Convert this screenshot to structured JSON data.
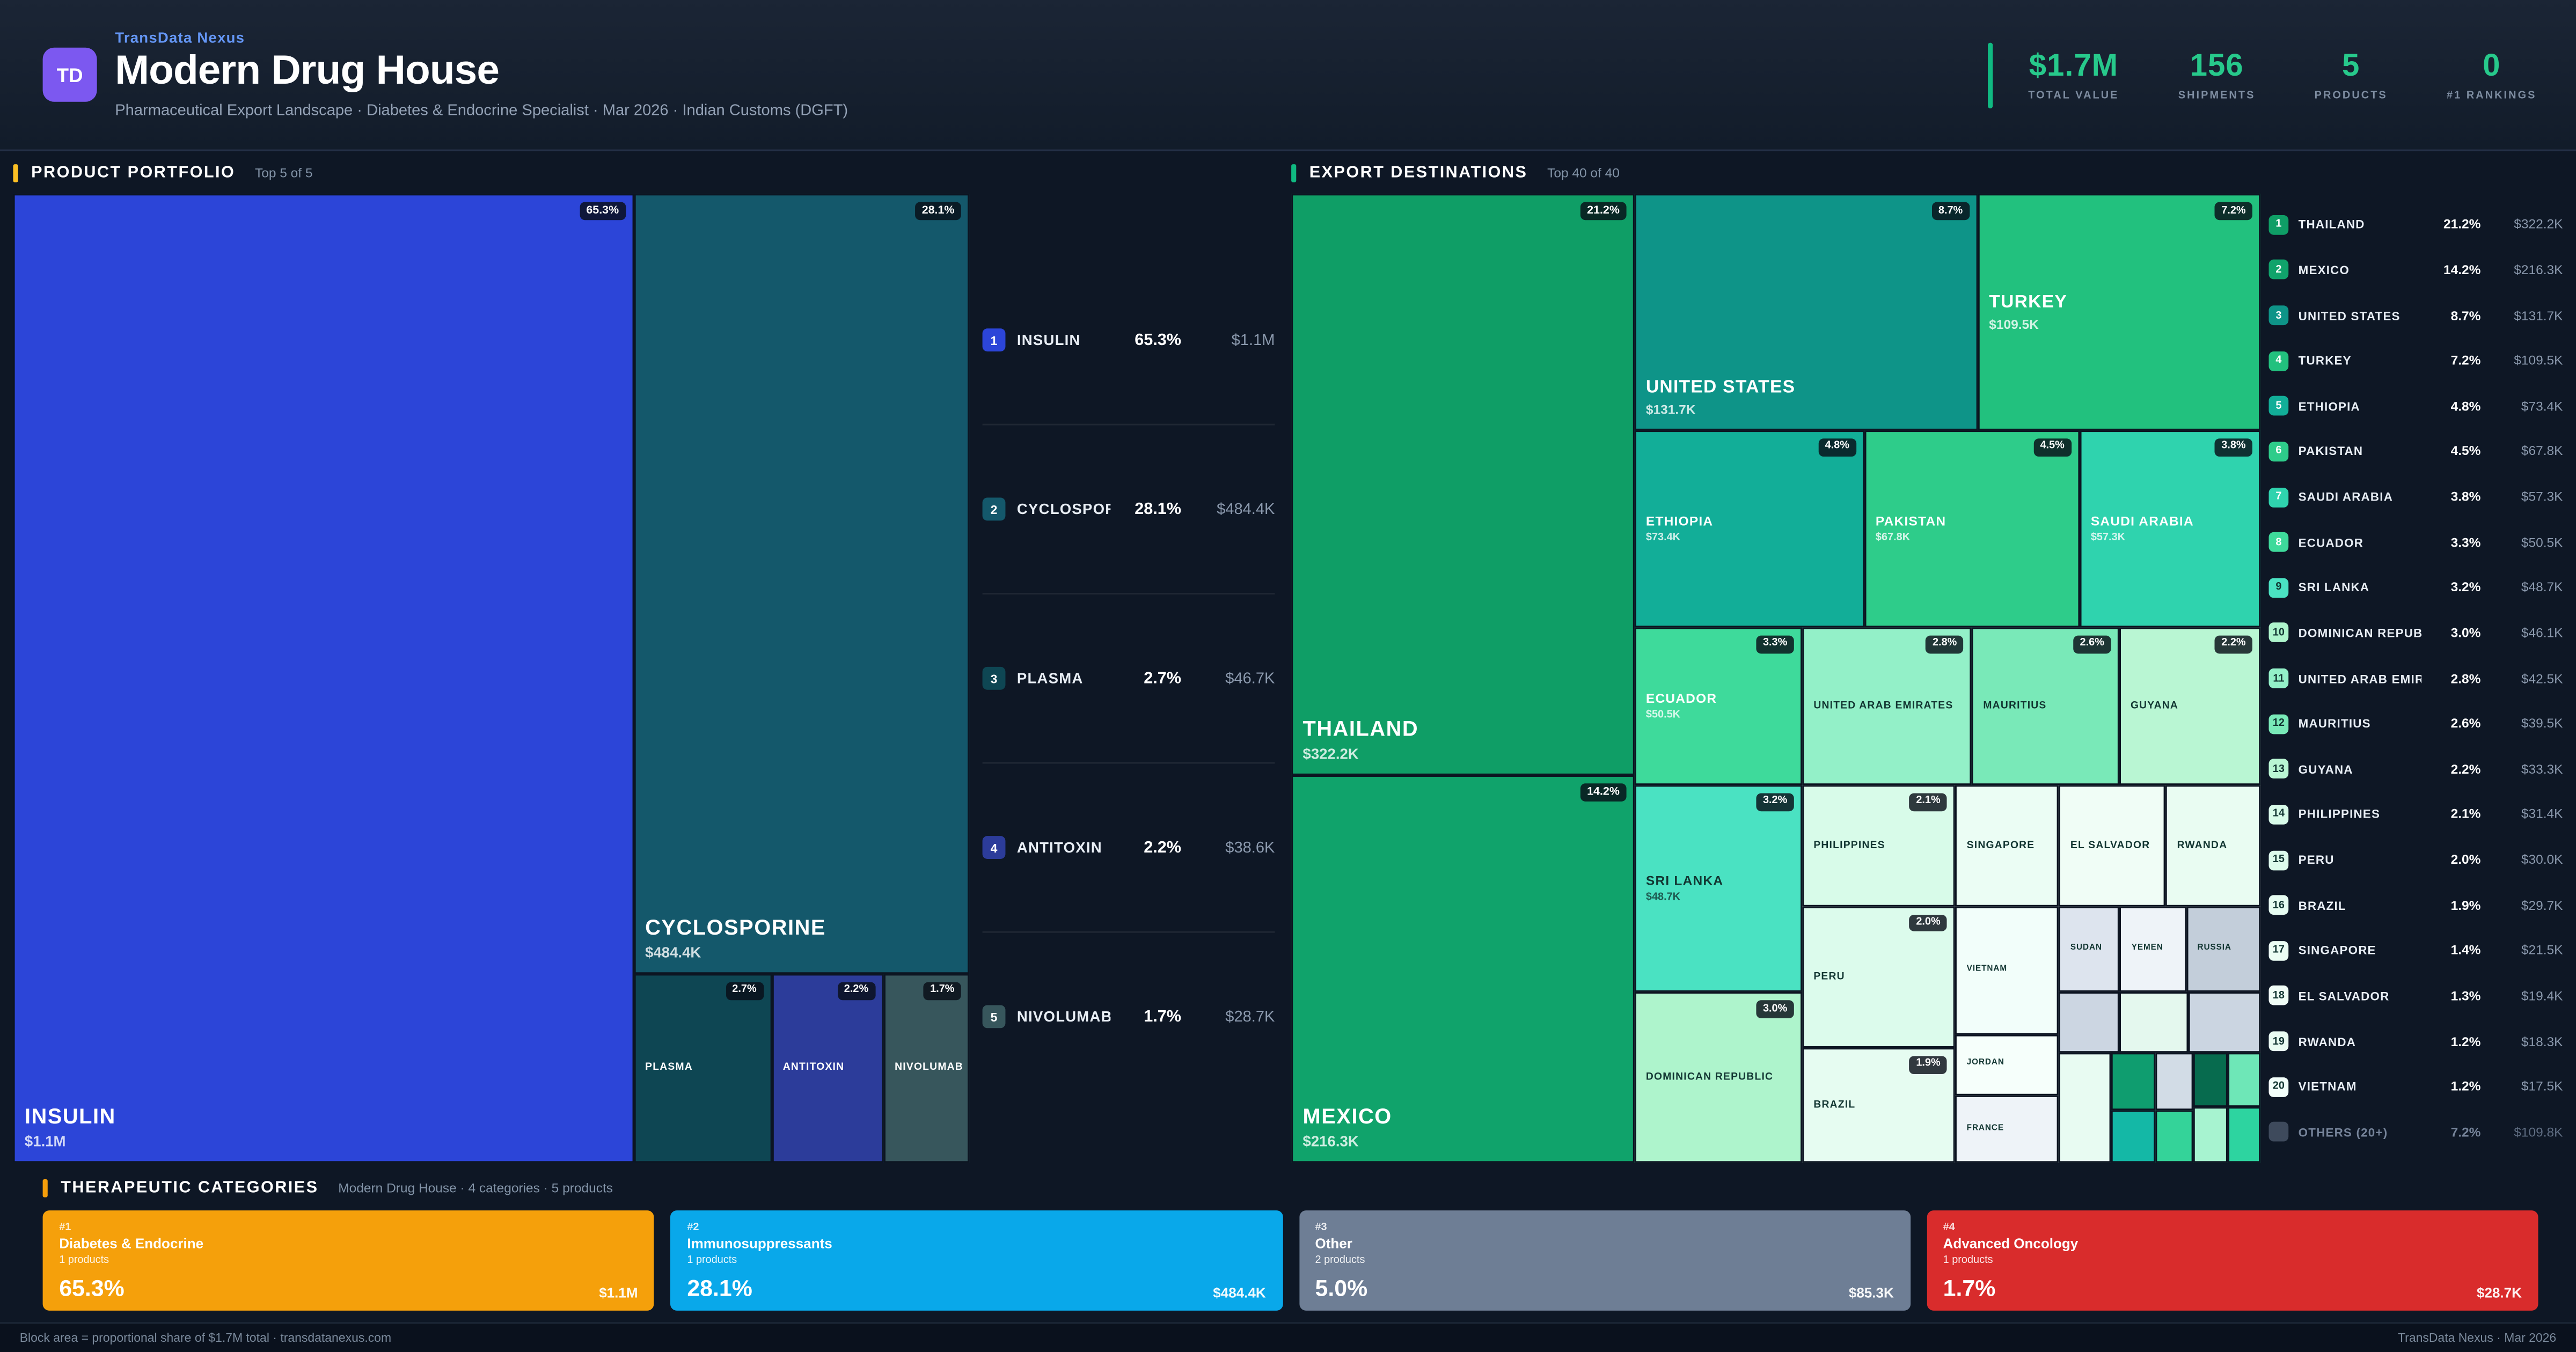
{
  "colors": {
    "accent_green": "#10b981",
    "stat_green": "#27c98b",
    "brand_blue": "#6496f5",
    "logo_purple": "#7c58f0",
    "portfolio_accent": "#fbbf24",
    "destinations_accent": "#10b981",
    "categories_accent": "#f59e0b"
  },
  "header": {
    "brand": "TransData Nexus",
    "logo": "TD",
    "title": "Modern Drug House",
    "subtitle": "Pharmaceutical Export Landscape · Diabetes & Endocrine Specialist · Mar 2026 · Indian Customs (DGFT)",
    "stats": [
      {
        "value": "$1.7M",
        "label": "TOTAL VALUE"
      },
      {
        "value": "156",
        "label": "SHIPMENTS"
      },
      {
        "value": "5",
        "label": "PRODUCTS"
      },
      {
        "value": "0",
        "label": "#1 RANKINGS"
      }
    ]
  },
  "portfolio": {
    "title": "PRODUCT PORTFOLIO",
    "range": "Top 5 of 5",
    "blocks": [
      {
        "name": "INSULIN",
        "value": "$1.1M",
        "badge": "65.3%",
        "x": "0%",
        "y": "0%",
        "w": "64.9%",
        "h": "100%",
        "color": "#2c45d8",
        "sz": "xl",
        "lp": "b"
      },
      {
        "name": "CYCLOSPORINE",
        "value": "$484.4K",
        "badge": "28.1%",
        "x": "64.9%",
        "y": "0%",
        "w": "35.1%",
        "h": "80.5%",
        "color": "#14586b",
        "sz": "xl",
        "lp": "b"
      },
      {
        "name": "PLASMA",
        "value": "",
        "badge": "2.7%",
        "x": "64.9%",
        "y": "80.5%",
        "w": "14.4%",
        "h": "19.5%",
        "color": "#0e4653",
        "sz": "sm"
      },
      {
        "name": "ANTITOXIN",
        "value": "",
        "badge": "2.2%",
        "x": "79.3%",
        "y": "80.5%",
        "w": "11.7%",
        "h": "19.5%",
        "color": "#2c3c9a",
        "sz": "sm"
      },
      {
        "name": "NIVOLUMAB",
        "value": "",
        "badge": "1.7%",
        "x": "91.0%",
        "y": "80.5%",
        "w": "9.0%",
        "h": "19.5%",
        "color": "#37565c",
        "sz": "sm"
      }
    ],
    "legend": [
      {
        "n": "1",
        "name": "INSULIN",
        "pct": "65.3%",
        "value": "$1.1M",
        "color": "#2c45d8"
      },
      {
        "n": "2",
        "name": "CYCLOSPORINE",
        "pct": "28.1%",
        "value": "$484.4K",
        "color": "#14586b"
      },
      {
        "n": "3",
        "name": "PLASMA",
        "pct": "2.7%",
        "value": "$46.7K",
        "color": "#0e4653"
      },
      {
        "n": "4",
        "name": "ANTITOXIN",
        "pct": "2.2%",
        "value": "$38.6K",
        "color": "#2c3c9a"
      },
      {
        "n": "5",
        "name": "NIVOLUMAB",
        "pct": "1.7%",
        "value": "$28.7K",
        "color": "#37565c"
      }
    ]
  },
  "destinations": {
    "title": "EXPORT DESTINATIONS",
    "range": "Top 40 of 40",
    "blocks": [
      {
        "name": "THAILAND",
        "value": "$322.2K",
        "badge": "21.2%",
        "x": "0%",
        "y": "0%",
        "w": "35.4%",
        "h": "60.0%",
        "color": "#0f9e66",
        "sz": "xl",
        "lp": "b"
      },
      {
        "name": "MEXICO",
        "value": "$216.3K",
        "badge": "14.2%",
        "x": "0%",
        "y": "60.0%",
        "w": "35.4%",
        "h": "40.0%",
        "color": "#10a36b",
        "sz": "xl",
        "lp": "b"
      },
      {
        "name": "UNITED STATES",
        "value": "$131.7K",
        "badge": "8.7%",
        "x": "35.4%",
        "y": "0%",
        "w": "35.4%",
        "h": "24.4%",
        "color": "#0e9488",
        "sz": "lg",
        "lp": "b"
      },
      {
        "name": "TURKEY",
        "value": "$109.5K",
        "badge": "7.2%",
        "x": "70.8%",
        "y": "0%",
        "w": "29.2%",
        "h": "24.4%",
        "color": "#22c17e",
        "sz": "lg"
      },
      {
        "name": "ETHIOPIA",
        "value": "$73.4K",
        "badge": "4.8%",
        "x": "35.4%",
        "y": "24.4%",
        "w": "23.7%",
        "h": "20.3%",
        "color": "#12ae98",
        "sz": "md"
      },
      {
        "name": "PAKISTAN",
        "value": "$67.8K",
        "badge": "4.5%",
        "x": "59.1%",
        "y": "24.4%",
        "w": "22.2%",
        "h": "20.3%",
        "color": "#2ecc8a",
        "sz": "md"
      },
      {
        "name": "SAUDI ARABIA",
        "value": "$57.3K",
        "badge": "3.8%",
        "x": "81.3%",
        "y": "24.4%",
        "w": "18.7%",
        "h": "20.3%",
        "color": "#2fd3ae",
        "sz": "md"
      },
      {
        "name": "ECUADOR",
        "value": "$50.5K",
        "badge": "3.3%",
        "x": "35.4%",
        "y": "44.7%",
        "w": "17.3%",
        "h": "16.3%",
        "color": "#3eda9b",
        "sz": "md"
      },
      {
        "name": "UNITED ARAB EMIRATES",
        "value": "",
        "badge": "2.8%",
        "x": "52.7%",
        "y": "44.7%",
        "w": "17.5%",
        "h": "16.3%",
        "color": "#93f0c8",
        "sz": "sm",
        "text": "dark"
      },
      {
        "name": "MAURITIUS",
        "value": "",
        "badge": "2.6%",
        "x": "70.2%",
        "y": "44.7%",
        "w": "15.2%",
        "h": "16.3%",
        "color": "#79e9b8",
        "sz": "sm",
        "text": "dark"
      },
      {
        "name": "GUYANA",
        "value": "",
        "badge": "2.2%",
        "x": "85.4%",
        "y": "44.7%",
        "w": "14.6%",
        "h": "16.3%",
        "color": "#b9f6d3",
        "sz": "sm",
        "text": "dark"
      },
      {
        "name": "SRI LANKA",
        "value": "$48.7K",
        "badge": "3.2%",
        "x": "35.4%",
        "y": "61.0%",
        "w": "17.3%",
        "h": "21.4%",
        "color": "#4ae2c2",
        "sz": "md",
        "text": "dark"
      },
      {
        "name": "DOMINICAN REPUBLIC",
        "value": "",
        "badge": "3.0%",
        "x": "35.4%",
        "y": "82.4%",
        "w": "17.3%",
        "h": "17.6%",
        "color": "#aef4cc",
        "sz": "sm",
        "text": "dark"
      },
      {
        "name": "PHILIPPINES",
        "value": "",
        "badge": "2.1%",
        "x": "52.7%",
        "y": "61.0%",
        "w": "15.8%",
        "h": "12.5%",
        "color": "#d8fbe9",
        "sz": "sm",
        "text": "dark"
      },
      {
        "name": "SINGAPORE",
        "value": "",
        "badge": "",
        "x": "68.5%",
        "y": "61.0%",
        "w": "10.7%",
        "h": "12.5%",
        "color": "#ebfdf4",
        "sz": "sm",
        "text": "dark"
      },
      {
        "name": "EL SALVADOR",
        "value": "",
        "badge": "",
        "x": "79.2%",
        "y": "61.0%",
        "w": "11.0%",
        "h": "12.5%",
        "color": "#f0fdf6",
        "sz": "sm",
        "text": "dark"
      },
      {
        "name": "RWANDA",
        "value": "",
        "badge": "",
        "x": "90.2%",
        "y": "61.0%",
        "w": "9.8%",
        "h": "12.5%",
        "color": "#e9fcf2",
        "sz": "sm",
        "text": "dark"
      },
      {
        "name": "PERU",
        "value": "",
        "badge": "2.0%",
        "x": "52.7%",
        "y": "73.5%",
        "w": "15.8%",
        "h": "14.6%",
        "color": "#dcfbec",
        "sz": "sm",
        "text": "dark"
      },
      {
        "name": "VIETNAM",
        "value": "",
        "badge": "",
        "x": "68.5%",
        "y": "73.5%",
        "w": "10.7%",
        "h": "13.2%",
        "color": "#f2fefa",
        "sz": "xs",
        "text": "dark"
      },
      {
        "name": "SUDAN",
        "value": "",
        "badge": "",
        "x": "79.2%",
        "y": "73.5%",
        "w": "6.3%",
        "h": "8.8%",
        "color": "#dde4ee",
        "sz": "xs",
        "text": "dark"
      },
      {
        "name": "YEMEN",
        "value": "",
        "badge": "",
        "x": "85.5%",
        "y": "73.5%",
        "w": "6.8%",
        "h": "8.8%",
        "color": "#eef3f8",
        "sz": "xs",
        "text": "dark"
      },
      {
        "name": "RUSSIA",
        "value": "",
        "badge": "",
        "x": "92.3%",
        "y": "73.5%",
        "w": "7.7%",
        "h": "8.8%",
        "color": "#c3ceda",
        "sz": "xs",
        "text": "dark"
      },
      {
        "name": "BRAZIL",
        "value": "",
        "badge": "1.9%",
        "x": "52.7%",
        "y": "88.1%",
        "w": "15.8%",
        "h": "11.9%",
        "color": "#e6fcf1",
        "sz": "sm",
        "text": "dark"
      },
      {
        "name": "JORDAN",
        "value": "",
        "badge": "",
        "x": "68.5%",
        "y": "86.7%",
        "w": "10.7%",
        "h": "6.4%",
        "color": "#f6fffb",
        "sz": "xs",
        "text": "dark"
      },
      {
        "name": "FRANCE",
        "value": "",
        "badge": "",
        "x": "68.5%",
        "y": "93.1%",
        "w": "10.7%",
        "h": "6.9%",
        "color": "#eef3f8",
        "sz": "xs",
        "text": "dark"
      },
      {
        "name": "",
        "value": "",
        "badge": "",
        "x": "79.2%",
        "y": "82.4%",
        "w": "6.3%",
        "h": "6.2%",
        "color": "#ccd6e2",
        "sz": "xs"
      },
      {
        "name": "",
        "value": "",
        "badge": "",
        "x": "85.5%",
        "y": "82.4%",
        "w": "7.0%",
        "h": "6.2%",
        "color": "#e4f8ee",
        "sz": "xs"
      },
      {
        "name": "",
        "value": "",
        "badge": "",
        "x": "92.5%",
        "y": "82.4%",
        "w": "7.5%",
        "h": "6.2%",
        "color": "#cbd5e1",
        "sz": "xs"
      },
      {
        "name": "",
        "value": "",
        "badge": "",
        "x": "79.2%",
        "y": "88.6%",
        "w": "5.4%",
        "h": "11.4%",
        "color": "#e8fbf2",
        "sz": "xs"
      },
      {
        "name": "",
        "value": "",
        "badge": "",
        "x": "84.6%",
        "y": "88.6%",
        "w": "4.6%",
        "h": "6.0%",
        "color": "#0f9d6f",
        "sz": "xs"
      },
      {
        "name": "",
        "value": "",
        "badge": "",
        "x": "84.6%",
        "y": "94.6%",
        "w": "4.6%",
        "h": "5.4%",
        "color": "#14b8a6",
        "sz": "xs"
      },
      {
        "name": "",
        "value": "",
        "badge": "",
        "x": "89.2%",
        "y": "88.6%",
        "w": "3.8%",
        "h": "6.0%",
        "color": "#d2dce6",
        "sz": "xs"
      },
      {
        "name": "",
        "value": "",
        "badge": "",
        "x": "89.2%",
        "y": "94.6%",
        "w": "3.8%",
        "h": "5.4%",
        "color": "#34d399",
        "sz": "xs"
      },
      {
        "name": "",
        "value": "",
        "badge": "",
        "x": "93.0%",
        "y": "88.6%",
        "w": "3.6%",
        "h": "5.6%",
        "color": "#076b4e",
        "sz": "xs"
      },
      {
        "name": "",
        "value": "",
        "badge": "",
        "x": "93.0%",
        "y": "94.2%",
        "w": "3.6%",
        "h": "5.8%",
        "color": "#a7f3d0",
        "sz": "xs"
      },
      {
        "name": "",
        "value": "",
        "badge": "",
        "x": "96.6%",
        "y": "88.6%",
        "w": "3.4%",
        "h": "5.6%",
        "color": "#6ee7b7",
        "sz": "xs"
      },
      {
        "name": "",
        "value": "",
        "badge": "",
        "x": "96.6%",
        "y": "94.2%",
        "w": "3.4%",
        "h": "5.8%",
        "color": "#2dd4a0",
        "sz": "xs"
      }
    ],
    "legend": [
      {
        "n": "1",
        "name": "THAILAND",
        "pct": "21.2%",
        "value": "$322.2K",
        "color": "#0f9e66"
      },
      {
        "n": "2",
        "name": "MEXICO",
        "pct": "14.2%",
        "value": "$216.3K",
        "color": "#10a36b"
      },
      {
        "n": "3",
        "name": "UNITED STATES",
        "pct": "8.7%",
        "value": "$131.7K",
        "color": "#0e9488"
      },
      {
        "n": "4",
        "name": "TURKEY",
        "pct": "7.2%",
        "value": "$109.5K",
        "color": "#22c17e"
      },
      {
        "n": "5",
        "name": "ETHIOPIA",
        "pct": "4.8%",
        "value": "$73.4K",
        "color": "#12ae98"
      },
      {
        "n": "6",
        "name": "PAKISTAN",
        "pct": "4.5%",
        "value": "$67.8K",
        "color": "#2ecc8a"
      },
      {
        "n": "7",
        "name": "SAUDI ARABIA",
        "pct": "3.8%",
        "value": "$57.3K",
        "color": "#2fd3ae"
      },
      {
        "n": "8",
        "name": "ECUADOR",
        "pct": "3.3%",
        "value": "$50.5K",
        "color": "#3eda9b"
      },
      {
        "n": "9",
        "name": "SRI LANKA",
        "pct": "3.2%",
        "value": "$48.7K",
        "color": "#4ae2c2",
        "tc": "dark"
      },
      {
        "n": "10",
        "name": "DOMINICAN REPUBLIC",
        "pct": "3.0%",
        "value": "$46.1K",
        "color": "#aef4cc",
        "tc": "dark"
      },
      {
        "n": "11",
        "name": "UNITED ARAB EMIRATES",
        "pct": "2.8%",
        "value": "$42.5K",
        "color": "#93f0c8",
        "tc": "dark"
      },
      {
        "n": "12",
        "name": "MAURITIUS",
        "pct": "2.6%",
        "value": "$39.5K",
        "color": "#79e9b8",
        "tc": "dark"
      },
      {
        "n": "13",
        "name": "GUYANA",
        "pct": "2.2%",
        "value": "$33.3K",
        "color": "#b9f6d3",
        "tc": "dark"
      },
      {
        "n": "14",
        "name": "PHILIPPINES",
        "pct": "2.1%",
        "value": "$31.4K",
        "color": "#d8fbe9",
        "tc": "dark"
      },
      {
        "n": "15",
        "name": "PERU",
        "pct": "2.0%",
        "value": "$30.0K",
        "color": "#dcfbec",
        "tc": "dark"
      },
      {
        "n": "16",
        "name": "BRAZIL",
        "pct": "1.9%",
        "value": "$29.7K",
        "color": "#e6fcf1",
        "tc": "dark"
      },
      {
        "n": "17",
        "name": "SINGAPORE",
        "pct": "1.4%",
        "value": "$21.5K",
        "color": "#ebfdf4",
        "tc": "dark"
      },
      {
        "n": "18",
        "name": "EL SALVADOR",
        "pct": "1.3%",
        "value": "$19.4K",
        "color": "#f0fdf6",
        "tc": "dark"
      },
      {
        "n": "19",
        "name": "RWANDA",
        "pct": "1.2%",
        "value": "$18.3K",
        "color": "#e9fcf2",
        "tc": "dark"
      },
      {
        "n": "20",
        "name": "VIETNAM",
        "pct": "1.2%",
        "value": "$17.5K",
        "color": "#f2fefa",
        "tc": "dark"
      },
      {
        "n": "",
        "name": "OTHERS (20+)",
        "pct": "7.2%",
        "value": "$109.8K",
        "color": "#3e4a5c",
        "dim": "1"
      }
    ]
  },
  "categories": {
    "title": "THERAPEUTIC CATEGORIES",
    "subtitle": "Modern Drug House · 4 categories · 5 products",
    "cards": [
      {
        "rank": "#1",
        "name": "Diabetes & Endocrine",
        "products": "1 products",
        "pct": "65.3%",
        "value": "$1.1M",
        "color": "#f5a00b"
      },
      {
        "rank": "#2",
        "name": "Immunosuppressants",
        "products": "1 products",
        "pct": "28.1%",
        "value": "$484.4K",
        "color": "#09a8ea"
      },
      {
        "rank": "#3",
        "name": "Other",
        "products": "2 products",
        "pct": "5.0%",
        "value": "$85.3K",
        "color": "#6e7e95"
      },
      {
        "rank": "#4",
        "name": "Advanced Oncology",
        "products": "1 products",
        "pct": "1.7%",
        "value": "$28.7K",
        "color": "#d92c2c"
      }
    ]
  },
  "footer": {
    "left": "Block area = proportional share of $1.7M total · transdatanexus.com",
    "right": "TransData Nexus · Mar 2026"
  },
  "chart_data": [
    {
      "type": "treemap",
      "title": "PRODUCT PORTFOLIO (Top 5 of 5)",
      "total": "$1.7M",
      "items": [
        {
          "label": "INSULIN",
          "pct": 65.3,
          "value": "$1.1M"
        },
        {
          "label": "CYCLOSPORINE",
          "pct": 28.1,
          "value": "$484.4K"
        },
        {
          "label": "PLASMA",
          "pct": 2.7,
          "value": "$46.7K"
        },
        {
          "label": "ANTITOXIN",
          "pct": 2.2,
          "value": "$38.6K"
        },
        {
          "label": "NIVOLUMAB",
          "pct": 1.7,
          "value": "$28.7K"
        }
      ]
    },
    {
      "type": "treemap",
      "title": "EXPORT DESTINATIONS (Top 40 of 40)",
      "total": "$1.7M",
      "items": [
        {
          "label": "THAILAND",
          "pct": 21.2,
          "value": "$322.2K"
        },
        {
          "label": "MEXICO",
          "pct": 14.2,
          "value": "$216.3K"
        },
        {
          "label": "UNITED STATES",
          "pct": 8.7,
          "value": "$131.7K"
        },
        {
          "label": "TURKEY",
          "pct": 7.2,
          "value": "$109.5K"
        },
        {
          "label": "ETHIOPIA",
          "pct": 4.8,
          "value": "$73.4K"
        },
        {
          "label": "PAKISTAN",
          "pct": 4.5,
          "value": "$67.8K"
        },
        {
          "label": "SAUDI ARABIA",
          "pct": 3.8,
          "value": "$57.3K"
        },
        {
          "label": "ECUADOR",
          "pct": 3.3,
          "value": "$50.5K"
        },
        {
          "label": "SRI LANKA",
          "pct": 3.2,
          "value": "$48.7K"
        },
        {
          "label": "DOMINICAN REPUBLIC",
          "pct": 3.0,
          "value": "$46.1K"
        },
        {
          "label": "UNITED ARAB EMIRATES",
          "pct": 2.8,
          "value": "$42.5K"
        },
        {
          "label": "MAURITIUS",
          "pct": 2.6,
          "value": "$39.5K"
        },
        {
          "label": "GUYANA",
          "pct": 2.2,
          "value": "$33.3K"
        },
        {
          "label": "PHILIPPINES",
          "pct": 2.1,
          "value": "$31.4K"
        },
        {
          "label": "PERU",
          "pct": 2.0,
          "value": "$30.0K"
        },
        {
          "label": "BRAZIL",
          "pct": 1.9,
          "value": "$29.7K"
        },
        {
          "label": "SINGAPORE",
          "pct": 1.4,
          "value": "$21.5K"
        },
        {
          "label": "EL SALVADOR",
          "pct": 1.3,
          "value": "$19.4K"
        },
        {
          "label": "RWANDA",
          "pct": 1.2,
          "value": "$18.3K"
        },
        {
          "label": "VIETNAM",
          "pct": 1.2,
          "value": "$17.5K"
        },
        {
          "label": "OTHERS (20+)",
          "pct": 7.2,
          "value": "$109.8K"
        }
      ]
    },
    {
      "type": "bar",
      "title": "THERAPEUTIC CATEGORIES",
      "categories": [
        "Diabetes & Endocrine",
        "Immunosuppressants",
        "Other",
        "Advanced Oncology"
      ],
      "values": [
        65.3,
        28.1,
        5.0,
        1.7
      ],
      "values_abs": [
        "$1.1M",
        "$484.4K",
        "$85.3K",
        "$28.7K"
      ],
      "products_per_category": [
        1,
        1,
        2,
        1
      ]
    }
  ]
}
